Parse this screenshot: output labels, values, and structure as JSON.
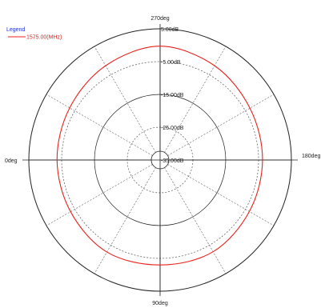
{
  "chart_data": {
    "type": "polar",
    "title": "",
    "legend": {
      "title": "Legend",
      "placement": "top-left",
      "entries": [
        {
          "label": "1575.00(MHz)",
          "color": "#e8231c"
        }
      ]
    },
    "angle_labels": [
      {
        "angle": 270,
        "label": "270deg"
      },
      {
        "angle": 180,
        "label": "180deg"
      },
      {
        "angle": 90,
        "label": "90deg"
      },
      {
        "angle": 0,
        "label": "0deg"
      }
    ],
    "angle_grid_step_deg": 30,
    "r_axis": {
      "min": -35,
      "max": 5,
      "ring_levels": [
        5,
        -5,
        -15,
        -25,
        -35
      ],
      "ring_labels": [
        "5.00dB",
        "-5.00dB",
        "-15.00dB",
        "-25.00dB",
        "-35.00dB"
      ],
      "dashed_levels": [
        -5,
        -25
      ],
      "solid_levels": [
        5,
        -15,
        -35
      ]
    },
    "series": [
      {
        "name": "1575.00(MHz)",
        "color": "#e8231c",
        "theta_deg": [
          0,
          30,
          60,
          90,
          120,
          150,
          180,
          210,
          240,
          270,
          300,
          330,
          360
        ],
        "r_db": [
          -3.6,
          -3.5,
          -2.6,
          -3.0,
          -2.7,
          -3.6,
          -3.8,
          -3.4,
          -1.8,
          -0.3,
          -1.8,
          -3.2,
          -3.6
        ]
      }
    ],
    "colors": {
      "axis": "#222222",
      "grid": "#555555",
      "legend_title": "#2233cc"
    }
  }
}
